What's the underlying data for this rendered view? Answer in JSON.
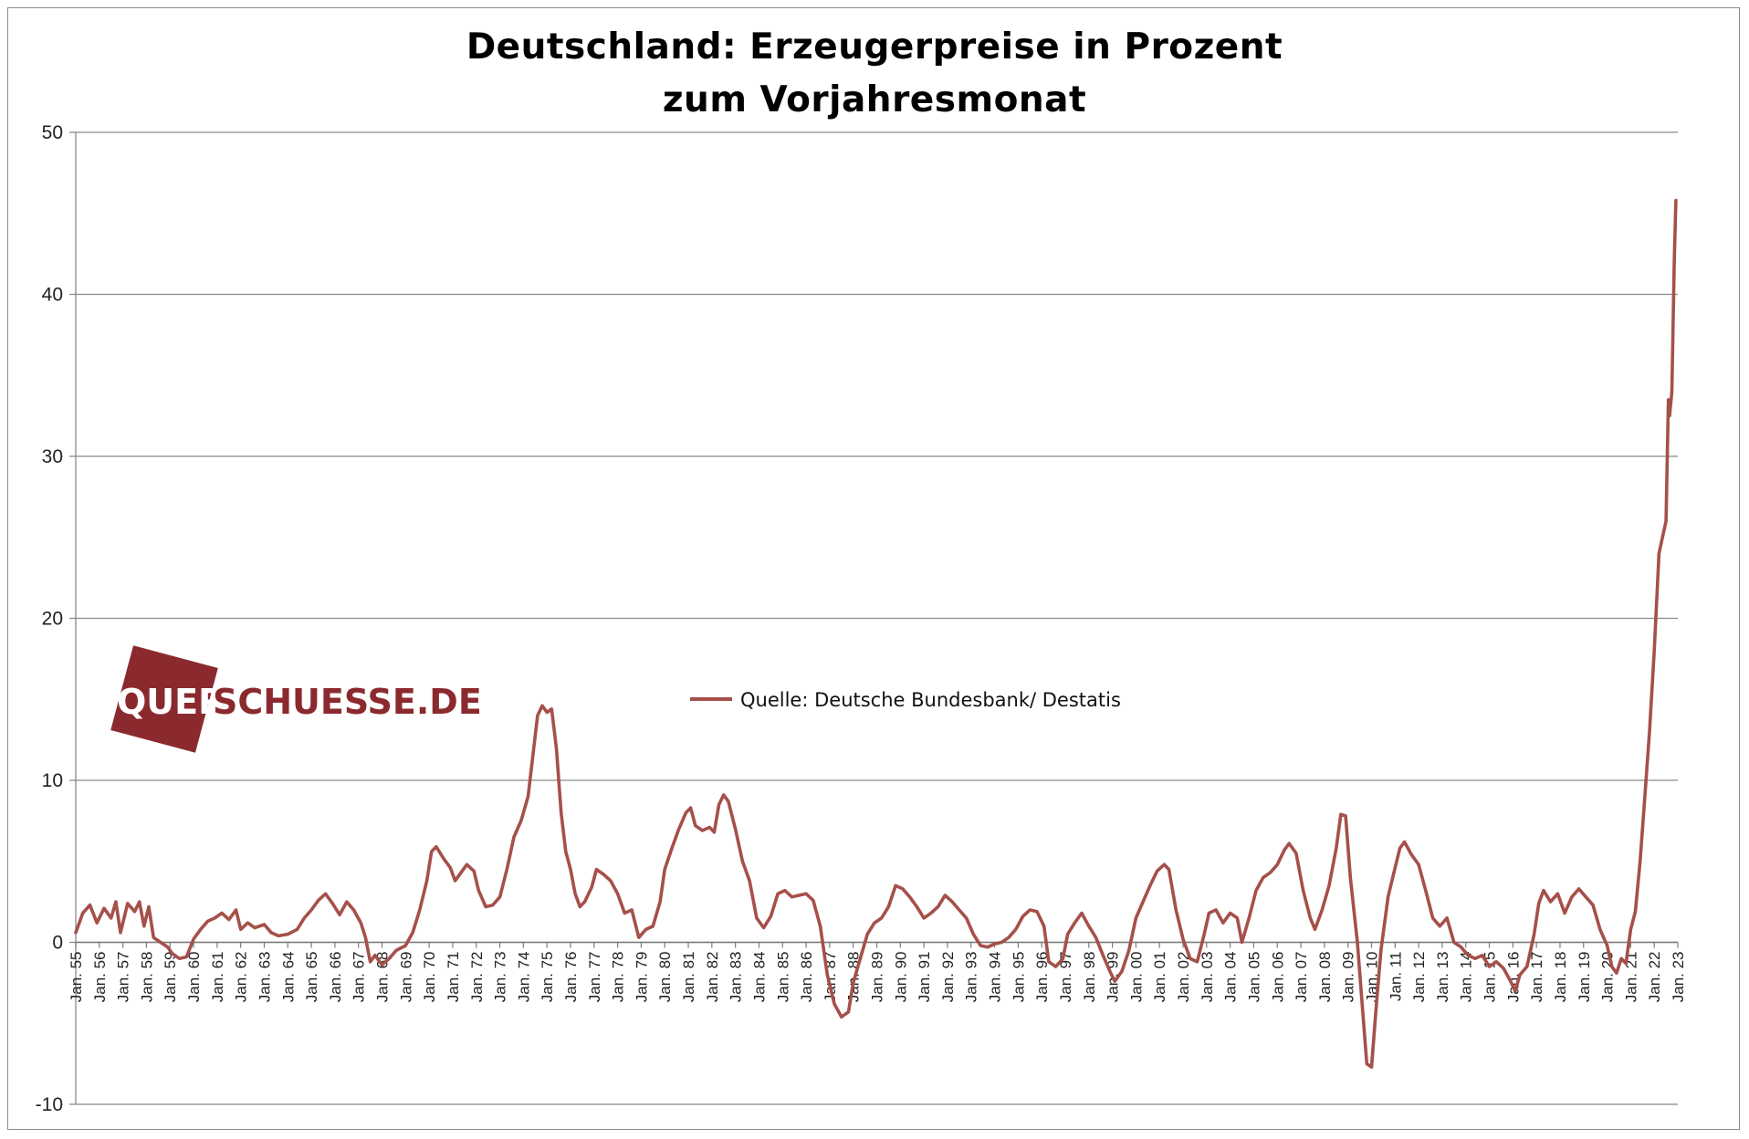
{
  "chart_data": {
    "type": "line",
    "title_lines": [
      "Deutschland: Erzeugerpreise  in Prozent",
      "zum Vorjahresmonat"
    ],
    "xlabel": "",
    "ylabel": "",
    "ylim": [
      -10,
      50
    ],
    "yticks": [
      50,
      40,
      30,
      20,
      10,
      0,
      -10
    ],
    "grid": true,
    "legend_position": "center-left",
    "x_tick_labels": [
      "Jan. 55",
      "Jan. 56",
      "Jan. 57",
      "Jan. 58",
      "Jan. 59",
      "Jan. 60",
      "Jan. 61",
      "Jan. 62",
      "Jan. 63",
      "Jan. 64",
      "Jan. 65",
      "Jan. 66",
      "Jan. 67",
      "Jan. 68",
      "Jan. 69",
      "Jan. 70",
      "Jan. 71",
      "Jan. 72",
      "Jan. 73",
      "Jan. 74",
      "Jan. 75",
      "Jan. 76",
      "Jan. 77",
      "Jan. 78",
      "Jan. 79",
      "Jan. 80",
      "Jan. 81",
      "Jan. 82",
      "Jan. 83",
      "Jan. 84",
      "Jan. 85",
      "Jan. 86",
      "Jan. 87",
      "Jan. 88",
      "Jan. 89",
      "Jan. 90",
      "Jan. 91",
      "Jan. 92",
      "Jan. 93",
      "Jan. 94",
      "Jan. 95",
      "Jan. 96",
      "Jan. 97",
      "Jan. 98",
      "Jan. 99",
      "Jan. 00",
      "Jan. 01",
      "Jan. 02",
      "Jan. 03",
      "Jan. 04",
      "Jan. 05",
      "Jan. 06",
      "Jan. 07",
      "Jan. 08",
      "Jan. 09",
      "Jan. 10",
      "Jan. 11",
      "Jan. 12",
      "Jan. 13",
      "Jan. 14",
      "Jan. 15",
      "Jan. 16",
      "Jan. 17",
      "Jan. 18",
      "Jan. 19",
      "Jan. 20",
      "Jan. 21",
      "Jan. 22",
      "Jan. 23"
    ],
    "x_start": 1955.0,
    "x_end": 2023.0,
    "series": [
      {
        "name": "Quelle: Deutsche Bundesbank/ Destatis",
        "color": "#a5504a",
        "points": [
          [
            1955.0,
            0.6
          ],
          [
            1955.3,
            1.8
          ],
          [
            1955.6,
            2.3
          ],
          [
            1955.9,
            1.2
          ],
          [
            1956.2,
            2.1
          ],
          [
            1956.5,
            1.5
          ],
          [
            1956.7,
            2.5
          ],
          [
            1956.9,
            0.6
          ],
          [
            1957.2,
            2.4
          ],
          [
            1957.5,
            1.9
          ],
          [
            1957.7,
            2.5
          ],
          [
            1957.9,
            1.0
          ],
          [
            1958.1,
            2.2
          ],
          [
            1958.3,
            0.3
          ],
          [
            1958.6,
            0.0
          ],
          [
            1958.9,
            -0.3
          ],
          [
            1959.1,
            -0.7
          ],
          [
            1959.4,
            -1.0
          ],
          [
            1959.7,
            -0.9
          ],
          [
            1960.0,
            0.2
          ],
          [
            1960.3,
            0.8
          ],
          [
            1960.6,
            1.3
          ],
          [
            1960.9,
            1.5
          ],
          [
            1961.2,
            1.8
          ],
          [
            1961.5,
            1.4
          ],
          [
            1961.8,
            2.0
          ],
          [
            1962.0,
            0.8
          ],
          [
            1962.3,
            1.2
          ],
          [
            1962.6,
            0.9
          ],
          [
            1963.0,
            1.1
          ],
          [
            1963.3,
            0.6
          ],
          [
            1963.6,
            0.4
          ],
          [
            1964.0,
            0.5
          ],
          [
            1964.4,
            0.8
          ],
          [
            1964.7,
            1.5
          ],
          [
            1965.0,
            2.0
          ],
          [
            1965.3,
            2.6
          ],
          [
            1965.6,
            3.0
          ],
          [
            1965.9,
            2.4
          ],
          [
            1966.2,
            1.7
          ],
          [
            1966.5,
            2.5
          ],
          [
            1966.8,
            2.0
          ],
          [
            1967.1,
            1.2
          ],
          [
            1967.3,
            0.3
          ],
          [
            1967.5,
            -1.2
          ],
          [
            1967.7,
            -0.8
          ],
          [
            1968.0,
            -1.4
          ],
          [
            1968.3,
            -1.0
          ],
          [
            1968.6,
            -0.5
          ],
          [
            1969.0,
            -0.2
          ],
          [
            1969.3,
            0.6
          ],
          [
            1969.6,
            2.0
          ],
          [
            1969.9,
            3.8
          ],
          [
            1970.1,
            5.6
          ],
          [
            1970.3,
            5.9
          ],
          [
            1970.6,
            5.2
          ],
          [
            1970.9,
            4.6
          ],
          [
            1971.1,
            3.8
          ],
          [
            1971.3,
            4.2
          ],
          [
            1971.6,
            4.8
          ],
          [
            1971.9,
            4.4
          ],
          [
            1972.1,
            3.2
          ],
          [
            1972.4,
            2.2
          ],
          [
            1972.7,
            2.3
          ],
          [
            1973.0,
            2.8
          ],
          [
            1973.3,
            4.5
          ],
          [
            1973.6,
            6.5
          ],
          [
            1973.9,
            7.5
          ],
          [
            1974.2,
            9.0
          ],
          [
            1974.4,
            11.5
          ],
          [
            1974.6,
            14.0
          ],
          [
            1974.8,
            14.6
          ],
          [
            1975.0,
            14.2
          ],
          [
            1975.2,
            14.4
          ],
          [
            1975.4,
            12.0
          ],
          [
            1975.6,
            8.0
          ],
          [
            1975.8,
            5.6
          ],
          [
            1976.0,
            4.5
          ],
          [
            1976.2,
            3.0
          ],
          [
            1976.4,
            2.2
          ],
          [
            1976.6,
            2.5
          ],
          [
            1976.9,
            3.4
          ],
          [
            1977.1,
            4.5
          ],
          [
            1977.4,
            4.2
          ],
          [
            1977.7,
            3.8
          ],
          [
            1978.0,
            3.0
          ],
          [
            1978.3,
            1.8
          ],
          [
            1978.6,
            2.0
          ],
          [
            1978.9,
            0.3
          ],
          [
            1979.2,
            0.8
          ],
          [
            1979.5,
            1.0
          ],
          [
            1979.8,
            2.5
          ],
          [
            1980.0,
            4.5
          ],
          [
            1980.3,
            5.8
          ],
          [
            1980.6,
            7.0
          ],
          [
            1980.9,
            8.0
          ],
          [
            1981.1,
            8.3
          ],
          [
            1981.3,
            7.2
          ],
          [
            1981.6,
            6.9
          ],
          [
            1981.9,
            7.1
          ],
          [
            1982.1,
            6.8
          ],
          [
            1982.3,
            8.5
          ],
          [
            1982.5,
            9.1
          ],
          [
            1982.7,
            8.7
          ],
          [
            1983.0,
            7.0
          ],
          [
            1983.3,
            5.0
          ],
          [
            1983.6,
            3.8
          ],
          [
            1983.9,
            1.5
          ],
          [
            1984.2,
            0.9
          ],
          [
            1984.5,
            1.6
          ],
          [
            1984.8,
            3.0
          ],
          [
            1985.1,
            3.2
          ],
          [
            1985.4,
            2.8
          ],
          [
            1985.7,
            2.9
          ],
          [
            1986.0,
            3.0
          ],
          [
            1986.3,
            2.6
          ],
          [
            1986.6,
            1.0
          ],
          [
            1986.9,
            -2.0
          ],
          [
            1987.2,
            -3.8
          ],
          [
            1987.5,
            -4.6
          ],
          [
            1987.8,
            -4.3
          ],
          [
            1988.0,
            -2.5
          ],
          [
            1988.3,
            -1.0
          ],
          [
            1988.6,
            0.5
          ],
          [
            1988.9,
            1.2
          ],
          [
            1989.2,
            1.5
          ],
          [
            1989.5,
            2.2
          ],
          [
            1989.8,
            3.5
          ],
          [
            1990.1,
            3.3
          ],
          [
            1990.4,
            2.8
          ],
          [
            1990.7,
            2.2
          ],
          [
            1991.0,
            1.5
          ],
          [
            1991.3,
            1.8
          ],
          [
            1991.6,
            2.2
          ],
          [
            1991.9,
            2.9
          ],
          [
            1992.2,
            2.5
          ],
          [
            1992.5,
            2.0
          ],
          [
            1992.8,
            1.5
          ],
          [
            1993.1,
            0.5
          ],
          [
            1993.4,
            -0.2
          ],
          [
            1993.7,
            -0.3
          ],
          [
            1994.0,
            -0.1
          ],
          [
            1994.3,
            0.0
          ],
          [
            1994.6,
            0.3
          ],
          [
            1994.9,
            0.8
          ],
          [
            1995.2,
            1.6
          ],
          [
            1995.5,
            2.0
          ],
          [
            1995.8,
            1.9
          ],
          [
            1996.1,
            1.0
          ],
          [
            1996.3,
            -1.2
          ],
          [
            1996.6,
            -1.5
          ],
          [
            1996.9,
            -1.0
          ],
          [
            1997.1,
            0.5
          ],
          [
            1997.4,
            1.2
          ],
          [
            1997.7,
            1.8
          ],
          [
            1998.0,
            1.0
          ],
          [
            1998.3,
            0.3
          ],
          [
            1998.6,
            -0.8
          ],
          [
            1998.9,
            -1.8
          ],
          [
            1999.1,
            -2.4
          ],
          [
            1999.4,
            -1.8
          ],
          [
            1999.7,
            -0.5
          ],
          [
            2000.0,
            1.5
          ],
          [
            2000.3,
            2.5
          ],
          [
            2000.6,
            3.5
          ],
          [
            2000.9,
            4.4
          ],
          [
            2001.2,
            4.8
          ],
          [
            2001.4,
            4.5
          ],
          [
            2001.7,
            2.0
          ],
          [
            2002.0,
            0.2
          ],
          [
            2002.3,
            -1.0
          ],
          [
            2002.6,
            -1.2
          ],
          [
            2002.9,
            0.5
          ],
          [
            2003.1,
            1.8
          ],
          [
            2003.4,
            2.0
          ],
          [
            2003.7,
            1.2
          ],
          [
            2004.0,
            1.8
          ],
          [
            2004.3,
            1.5
          ],
          [
            2004.5,
            0.0
          ],
          [
            2004.8,
            1.5
          ],
          [
            2005.1,
            3.2
          ],
          [
            2005.4,
            4.0
          ],
          [
            2005.7,
            4.3
          ],
          [
            2006.0,
            4.8
          ],
          [
            2006.3,
            5.7
          ],
          [
            2006.5,
            6.1
          ],
          [
            2006.8,
            5.5
          ],
          [
            2007.1,
            3.2
          ],
          [
            2007.4,
            1.5
          ],
          [
            2007.6,
            0.8
          ],
          [
            2007.9,
            2.0
          ],
          [
            2008.2,
            3.5
          ],
          [
            2008.5,
            5.8
          ],
          [
            2008.7,
            7.9
          ],
          [
            2008.9,
            7.8
          ],
          [
            2009.1,
            4.0
          ],
          [
            2009.4,
            0.0
          ],
          [
            2009.6,
            -3.8
          ],
          [
            2009.8,
            -7.5
          ],
          [
            2010.0,
            -7.7
          ],
          [
            2010.2,
            -4.0
          ],
          [
            2010.4,
            -0.5
          ],
          [
            2010.7,
            2.8
          ],
          [
            2010.9,
            4.0
          ],
          [
            2011.2,
            5.8
          ],
          [
            2011.4,
            6.2
          ],
          [
            2011.7,
            5.4
          ],
          [
            2012.0,
            4.8
          ],
          [
            2012.3,
            3.2
          ],
          [
            2012.6,
            1.5
          ],
          [
            2012.9,
            1.0
          ],
          [
            2013.2,
            1.5
          ],
          [
            2013.5,
            0.0
          ],
          [
            2013.8,
            -0.3
          ],
          [
            2014.1,
            -0.8
          ],
          [
            2014.4,
            -1.0
          ],
          [
            2014.7,
            -0.8
          ],
          [
            2015.0,
            -1.5
          ],
          [
            2015.3,
            -1.2
          ],
          [
            2015.6,
            -1.6
          ],
          [
            2015.9,
            -2.4
          ],
          [
            2016.1,
            -3.0
          ],
          [
            2016.3,
            -2.0
          ],
          [
            2016.6,
            -1.5
          ],
          [
            2016.9,
            0.5
          ],
          [
            2017.1,
            2.4
          ],
          [
            2017.3,
            3.2
          ],
          [
            2017.6,
            2.5
          ],
          [
            2017.9,
            3.0
          ],
          [
            2018.2,
            1.8
          ],
          [
            2018.5,
            2.8
          ],
          [
            2018.8,
            3.3
          ],
          [
            2019.1,
            2.8
          ],
          [
            2019.4,
            2.3
          ],
          [
            2019.7,
            0.8
          ],
          [
            2020.0,
            -0.2
          ],
          [
            2020.2,
            -1.5
          ],
          [
            2020.4,
            -1.9
          ],
          [
            2020.6,
            -1.0
          ],
          [
            2020.8,
            -1.3
          ],
          [
            2021.0,
            0.8
          ],
          [
            2021.2,
            1.9
          ],
          [
            2021.4,
            5.0
          ],
          [
            2021.6,
            9.0
          ],
          [
            2021.8,
            13.0
          ],
          [
            2022.0,
            18.0
          ],
          [
            2022.1,
            21.0
          ],
          [
            2022.2,
            24.0
          ],
          [
            2022.35,
            25.0
          ],
          [
            2022.5,
            26.0
          ],
          [
            2022.6,
            33.5
          ],
          [
            2022.65,
            32.5
          ],
          [
            2022.75,
            34.0
          ],
          [
            2022.85,
            42.0
          ],
          [
            2022.92,
            45.8
          ]
        ]
      }
    ]
  },
  "legend": {
    "label": "Quelle: Deutsche Bundesbank/ Destatis",
    "color": "#a5504a"
  },
  "logo": {
    "text_first": "QUER",
    "text_second": "SCHUESSE.DE",
    "color": "#8b2a2e"
  }
}
